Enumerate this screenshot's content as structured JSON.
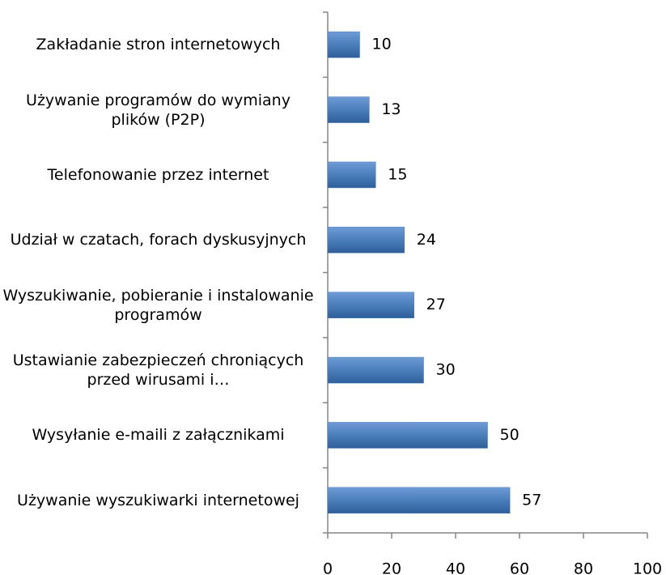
{
  "chart_data": {
    "type": "bar",
    "orientation": "horizontal",
    "categories": [
      "Zakładanie stron internetowych",
      "Używanie programów do wymiany plików (P2P)",
      "Telefonowanie przez internet",
      "Udział w czatach, forach dyskusyjnych",
      "Wyszukiwanie, pobieranie i instalowanie programów",
      "Ustawianie zabezpieczeń chroniących przed wirusami i…",
      "Wysyłanie e-maili z załącznikami",
      "Używanie wyszukiwarki internetowej"
    ],
    "values": [
      10,
      13,
      15,
      24,
      27,
      30,
      50,
      57
    ],
    "color": "#4a7ebb",
    "xlim": [
      0,
      100
    ],
    "xticks": [
      0,
      20,
      40,
      60,
      80,
      100
    ]
  }
}
